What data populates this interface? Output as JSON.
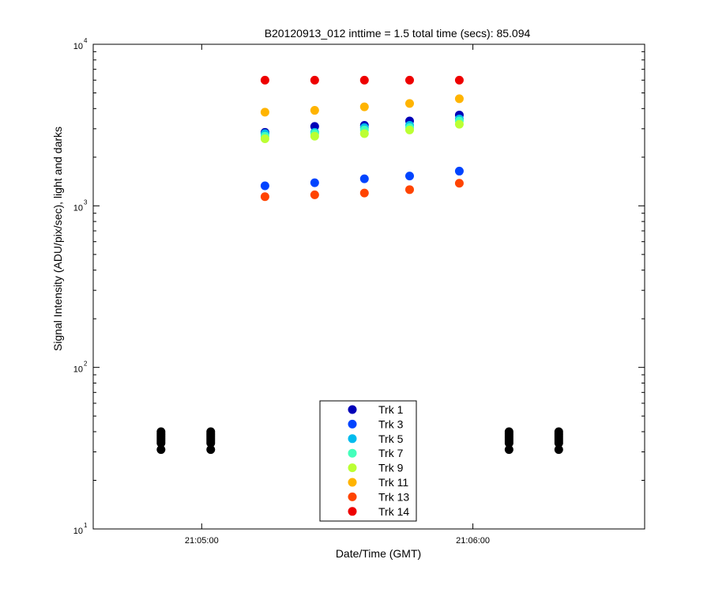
{
  "chart_data": {
    "type": "scatter",
    "title": "B20120913_012 inttime = 1.5 total time (secs): 85.094",
    "xlabel": "Date/Time (GMT)",
    "ylabel": "Signal Intensity (ADU/pix/sec), light and darks",
    "yscale": "log",
    "ylim": [
      10,
      10000
    ],
    "xlim": [
      "21:04:36",
      "21:06:38"
    ],
    "y_ticks": [
      {
        "base": "10",
        "exp": "1"
      },
      {
        "base": "10",
        "exp": "2"
      },
      {
        "base": "10",
        "exp": "3"
      },
      {
        "base": "10",
        "exp": "4"
      }
    ],
    "x_ticks": [
      "21:05:00",
      "21:06:00"
    ],
    "grid": false,
    "legend_position": "bottom-center",
    "light_times": [
      "21:05:14",
      "21:05:25",
      "21:05:36",
      "21:05:46",
      "21:05:57"
    ],
    "series": [
      {
        "name": "Trk 1",
        "color": "#0000b8",
        "values": [
          2850,
          3100,
          3150,
          3350,
          3650
        ]
      },
      {
        "name": "Trk 3",
        "color": "#0044ff",
        "values": [
          1330,
          1390,
          1470,
          1530,
          1640
        ]
      },
      {
        "name": "Trk 5",
        "color": "#00bbee",
        "values": [
          2800,
          2850,
          3050,
          3150,
          3450
        ]
      },
      {
        "name": "Trk 7",
        "color": "#44ffbb",
        "values": [
          2700,
          2800,
          2950,
          3050,
          3350
        ]
      },
      {
        "name": "Trk 9",
        "color": "#bbff33",
        "values": [
          2600,
          2700,
          2800,
          2950,
          3200
        ]
      },
      {
        "name": "Trk 11",
        "color": "#ffb400",
        "values": [
          3800,
          3900,
          4100,
          4300,
          4600
        ]
      },
      {
        "name": "Trk 13",
        "color": "#ff4400",
        "values": [
          1140,
          1170,
          1200,
          1260,
          1380
        ]
      },
      {
        "name": "Trk 14",
        "color": "#ee0000",
        "values": [
          6000,
          6000,
          6000,
          6000,
          6000
        ]
      }
    ],
    "darks": {
      "color": "#000000",
      "times": [
        "21:04:51",
        "21:05:02",
        "21:06:08",
        "21:06:19"
      ],
      "values": [
        31,
        34,
        35,
        36,
        37,
        38,
        39,
        40
      ]
    }
  }
}
